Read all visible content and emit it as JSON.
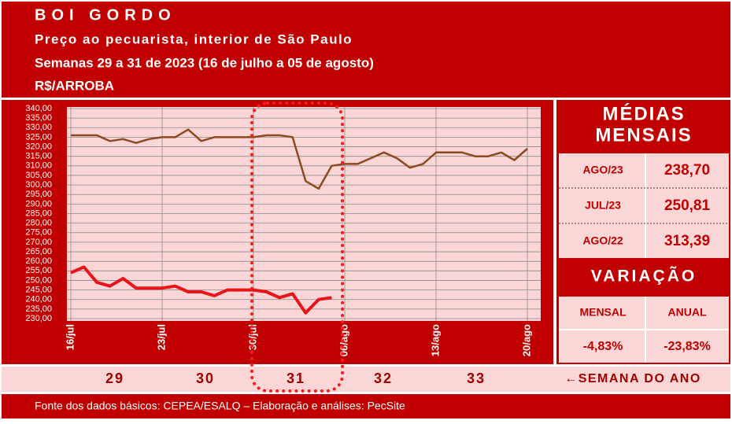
{
  "header": {
    "title": "BOI GORDO",
    "subtitle": "Preço ao pecuarista, interior de São Paulo",
    "period": "Semanas 29 a 31 de 2023 (16 de julho a 05 de agosto)",
    "unit": "R$/ARROBA"
  },
  "chart_data": {
    "type": "line",
    "categories": [
      "16/jul",
      null,
      null,
      null,
      null,
      null,
      null,
      "23/jul",
      null,
      null,
      null,
      null,
      null,
      null,
      "30/jul",
      null,
      null,
      null,
      null,
      null,
      null,
      "06/ago",
      null,
      null,
      null,
      null,
      null,
      null,
      "13/ago",
      null,
      null,
      null,
      null,
      null,
      null,
      "20/ago"
    ],
    "series": [
      {
        "color": "#8b4a1f",
        "values": [
          326,
          326,
          326,
          323,
          324,
          322,
          324,
          325,
          325,
          329,
          323,
          325,
          325,
          325,
          325,
          326,
          326,
          325,
          302,
          298,
          310,
          311,
          311,
          314,
          317,
          314,
          309,
          311,
          317,
          317,
          317,
          315,
          315,
          317,
          313,
          319
        ]
      },
      {
        "color": "#e8141a",
        "values": [
          254,
          257,
          249,
          247,
          251,
          246,
          246,
          246,
          247,
          244,
          244,
          242,
          245,
          245,
          245,
          244,
          241,
          243,
          233,
          240,
          241,
          null,
          null,
          null,
          null,
          null,
          null,
          null,
          null,
          null,
          null,
          null,
          null,
          null,
          null,
          null
        ]
      }
    ],
    "ylim": [
      230,
      340
    ],
    "yticks": [
      {
        "value": 230,
        "label": "230,00"
      },
      {
        "value": 235,
        "label": "235,00"
      },
      {
        "value": 240,
        "label": "240,00"
      },
      {
        "value": 245,
        "label": "245,00"
      },
      {
        "value": 250,
        "label": "250,00"
      },
      {
        "value": 255,
        "label": "255,00"
      },
      {
        "value": 260,
        "label": "260,00"
      },
      {
        "value": 265,
        "label": "265,00"
      },
      {
        "value": 270,
        "label": "270,00"
      },
      {
        "value": 275,
        "label": "275,00"
      },
      {
        "value": 280,
        "label": "280,00"
      },
      {
        "value": 285,
        "label": "285,00"
      },
      {
        "value": 290,
        "label": "290,00"
      },
      {
        "value": 295,
        "label": "295,00"
      },
      {
        "value": 300,
        "label": "300,00"
      },
      {
        "value": 305,
        "label": "305,00"
      },
      {
        "value": 310,
        "label": "310,00"
      },
      {
        "value": 315,
        "label": "315,00"
      },
      {
        "value": 320,
        "label": "320,00"
      },
      {
        "value": 325,
        "label": "325,00"
      },
      {
        "value": 330,
        "label": "330,00"
      },
      {
        "value": 335,
        "label": "335,00"
      },
      {
        "value": 340,
        "label": "340,00"
      }
    ],
    "grid": true
  },
  "panel": {
    "averages_title": [
      "MÉDIAS",
      "MENSAIS"
    ],
    "averages": [
      [
        "AGO/23",
        "238,70"
      ],
      [
        "JUL/23",
        "250,81"
      ],
      [
        "AGO/22",
        "313,39"
      ]
    ],
    "variation_title": "VARIAÇÃO",
    "variation_headers": [
      "MENSAL",
      "ANUAL"
    ],
    "variation_values": [
      "-4,83%",
      "-23,83%"
    ]
  },
  "weeks": {
    "numbers": [
      29,
      30,
      31,
      32,
      33
    ],
    "label": "←SEMANA DO ANO"
  },
  "footer": "Fonte dos dados básicos: CEPEA/ESALQ – Elaboração e análises: PecSite"
}
